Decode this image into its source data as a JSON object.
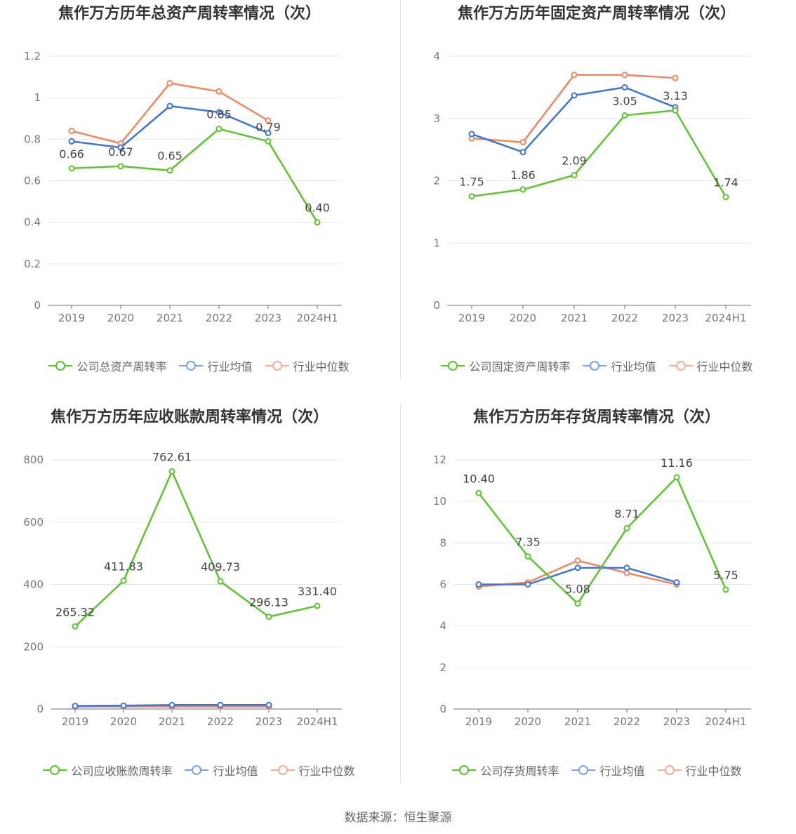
{
  "source": "数据来源：恒生聚源",
  "colors": {
    "company": "#5cc42c",
    "avg": "#3d74db",
    "median": "#f0875f"
  },
  "chart_data": [
    {
      "type": "line",
      "title": "焦作万方历年总资产周转率情况（次）",
      "categories": [
        "2019",
        "2020",
        "2021",
        "2022",
        "2023",
        "2024H1"
      ],
      "ylim": [
        0,
        1.2
      ],
      "yticks": [
        "0",
        "0.2",
        "0.4",
        "0.6",
        "0.8",
        "1",
        "1.2"
      ],
      "ytick_values": [
        0,
        0.2,
        0.4,
        0.6,
        0.8,
        1,
        1.2
      ],
      "series": [
        {
          "name": "公司总资产周转率",
          "key": "company",
          "values": [
            0.66,
            0.67,
            0.65,
            0.85,
            0.79,
            0.4
          ],
          "labels": [
            "0.66",
            "0.67",
            "0.65",
            "0.85",
            "0.79",
            "0.40"
          ]
        },
        {
          "name": "行业均值",
          "key": "avg",
          "values": [
            0.79,
            0.76,
            0.96,
            0.93,
            0.83,
            null
          ]
        },
        {
          "name": "行业中位数",
          "key": "median",
          "values": [
            0.84,
            0.78,
            1.07,
            1.03,
            0.89,
            null
          ]
        }
      ]
    },
    {
      "type": "line",
      "title": "焦作万方历年固定资产周转率情况（次）",
      "categories": [
        "2019",
        "2020",
        "2021",
        "2022",
        "2023",
        "2024H1"
      ],
      "ylim": [
        0,
        4
      ],
      "yticks": [
        "0",
        "1",
        "2",
        "3",
        "4"
      ],
      "ytick_values": [
        0,
        1,
        2,
        3,
        4
      ],
      "series": [
        {
          "name": "公司固定资产周转率",
          "key": "company",
          "values": [
            1.75,
            1.86,
            2.09,
            3.05,
            3.13,
            1.74
          ],
          "labels": [
            "1.75",
            "1.86",
            "2.09",
            "3.05",
            "3.13",
            "1.74"
          ]
        },
        {
          "name": "行业均值",
          "key": "avg",
          "values": [
            2.75,
            2.46,
            3.37,
            3.5,
            3.18,
            null
          ]
        },
        {
          "name": "行业中位数",
          "key": "median",
          "values": [
            2.68,
            2.62,
            3.7,
            3.7,
            3.65,
            null
          ]
        }
      ]
    },
    {
      "type": "line",
      "title": "焦作万方历年应收账款周转率情况（次）",
      "categories": [
        "2019",
        "2020",
        "2021",
        "2022",
        "2023",
        "2024H1"
      ],
      "ylim": [
        0,
        800
      ],
      "yticks": [
        "0",
        "200",
        "400",
        "600",
        "800"
      ],
      "ytick_values": [
        0,
        200,
        400,
        600,
        800
      ],
      "series": [
        {
          "name": "公司应收账款周转率",
          "key": "company",
          "values": [
            265.32,
            411.83,
            762.61,
            409.73,
            296.13,
            331.4
          ],
          "labels": [
            "265.32",
            "411.83",
            "762.61",
            "409.73",
            "296.13",
            "331.40"
          ]
        },
        {
          "name": "行业均值",
          "key": "avg",
          "values": [
            10,
            11,
            13,
            13,
            13,
            null
          ]
        },
        {
          "name": "行业中位数",
          "key": "median",
          "values": [
            8,
            8,
            8,
            8,
            8,
            null
          ]
        }
      ]
    },
    {
      "type": "line",
      "title": "焦作万方历年存货周转率情况（次）",
      "categories": [
        "2019",
        "2020",
        "2021",
        "2022",
        "2023",
        "2024H1"
      ],
      "ylim": [
        0,
        12
      ],
      "yticks": [
        "0",
        "2",
        "4",
        "6",
        "8",
        "10",
        "12"
      ],
      "ytick_values": [
        0,
        2,
        4,
        6,
        8,
        10,
        12
      ],
      "series": [
        {
          "name": "公司存货周转率",
          "key": "company",
          "values": [
            10.4,
            7.35,
            5.08,
            8.71,
            11.16,
            5.75
          ],
          "labels": [
            "10.40",
            "7.35",
            "5.08",
            "8.71",
            "11.16",
            "5.75"
          ]
        },
        {
          "name": "行业均值",
          "key": "avg",
          "values": [
            6.0,
            6.0,
            6.8,
            6.8,
            6.1,
            null
          ]
        },
        {
          "name": "行业中位数",
          "key": "median",
          "values": [
            5.9,
            6.1,
            7.15,
            6.55,
            6.0,
            null
          ]
        }
      ]
    }
  ]
}
